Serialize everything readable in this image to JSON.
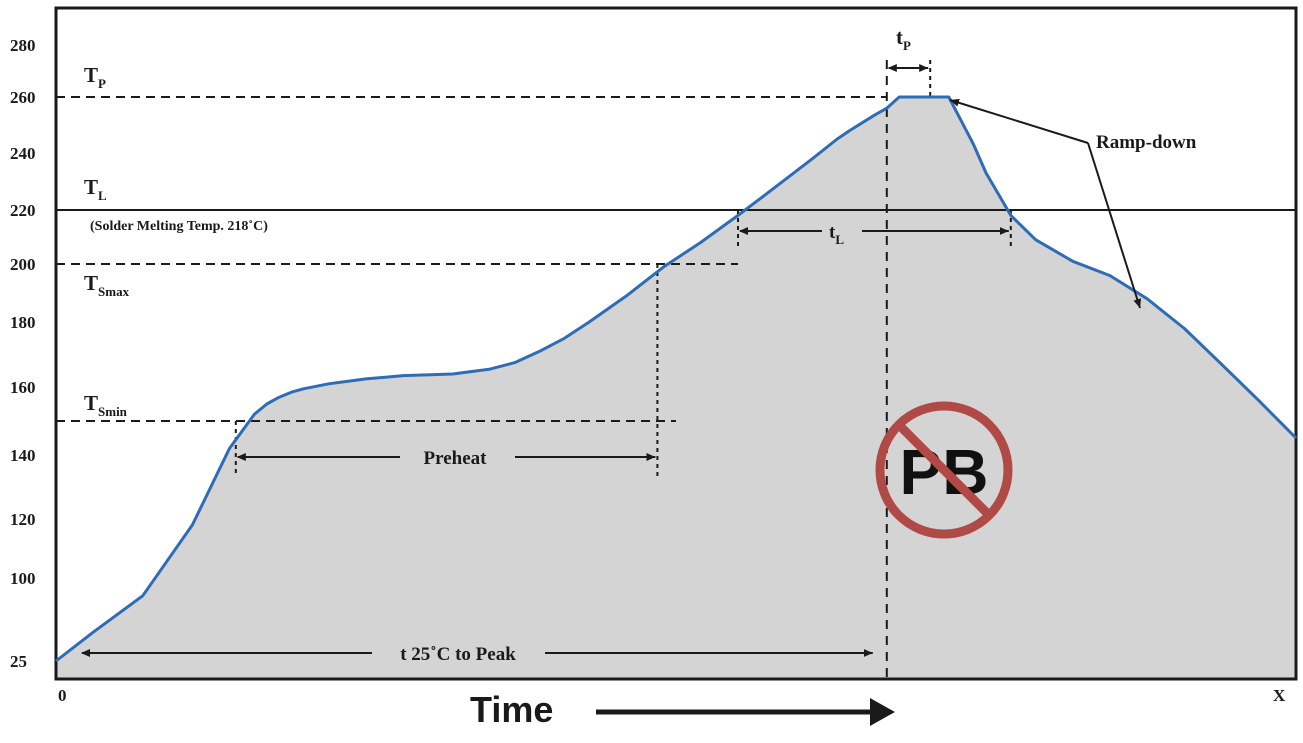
{
  "chart_data": {
    "type": "area",
    "title": "",
    "xlabel": "Time",
    "ylabel": "",
    "x_axis_start_label": "0",
    "x_axis_end_label": "X",
    "y_ticks": [
      "25",
      "100",
      "120",
      "140",
      "160",
      "180",
      "200",
      "220",
      "240",
      "260",
      "280"
    ],
    "y_tick_values": [
      25,
      100,
      120,
      140,
      160,
      180,
      200,
      220,
      240,
      260,
      280
    ],
    "xlim": [
      0,
      100
    ],
    "grid": false,
    "fill_color": "#d4d4d4",
    "line_color": "#2e6db6",
    "series": [
      {
        "x": [
          0,
          3,
          7,
          11,
          14,
          15,
          16,
          17,
          18,
          19,
          20,
          22,
          25,
          28,
          32,
          35,
          37,
          39,
          41,
          43,
          46,
          49,
          52,
          55,
          58,
          61,
          63,
          64,
          66,
          67,
          68,
          69,
          70,
          72,
          74,
          75,
          77,
          79,
          82,
          85,
          88,
          91,
          94,
          97,
          100
        ],
        "y": [
          25,
          51,
          84,
          118,
          142,
          147,
          152,
          155,
          157,
          158.5,
          159.5,
          161,
          162.5,
          163.5,
          164,
          165.5,
          167.5,
          171,
          175,
          180,
          189,
          199,
          208,
          218,
          228,
          238,
          245,
          248,
          253.5,
          256,
          260,
          260,
          260,
          260,
          243,
          233,
          218,
          209,
          201,
          196,
          188,
          178,
          167,
          156,
          145
        ]
      }
    ],
    "reference_levels": [
      {
        "label": "T",
        "subscript": "P",
        "value": 260
      },
      {
        "label": "T",
        "subscript": "L",
        "value": 220,
        "note": "(Solder Melting Temp. 218˚C)"
      },
      {
        "label": "T",
        "subscript": "Smax",
        "value": 200
      },
      {
        "label": "T",
        "subscript": "Smin",
        "value": 150
      }
    ],
    "annotations": [
      {
        "text": "Preheat",
        "from_x": 15,
        "to_x": 49
      },
      {
        "text": "t 25˚C to Peak",
        "from_x": 0,
        "to_x": 67
      },
      {
        "text": "t",
        "subscript": "L",
        "from_x": 55,
        "to_x": 77
      },
      {
        "text": "t",
        "subscript": "P",
        "from_x": 67,
        "to_x": 70.5
      },
      {
        "text": "Ramp-down"
      }
    ],
    "badge": {
      "text": "PB",
      "color": "#b04a46"
    }
  }
}
